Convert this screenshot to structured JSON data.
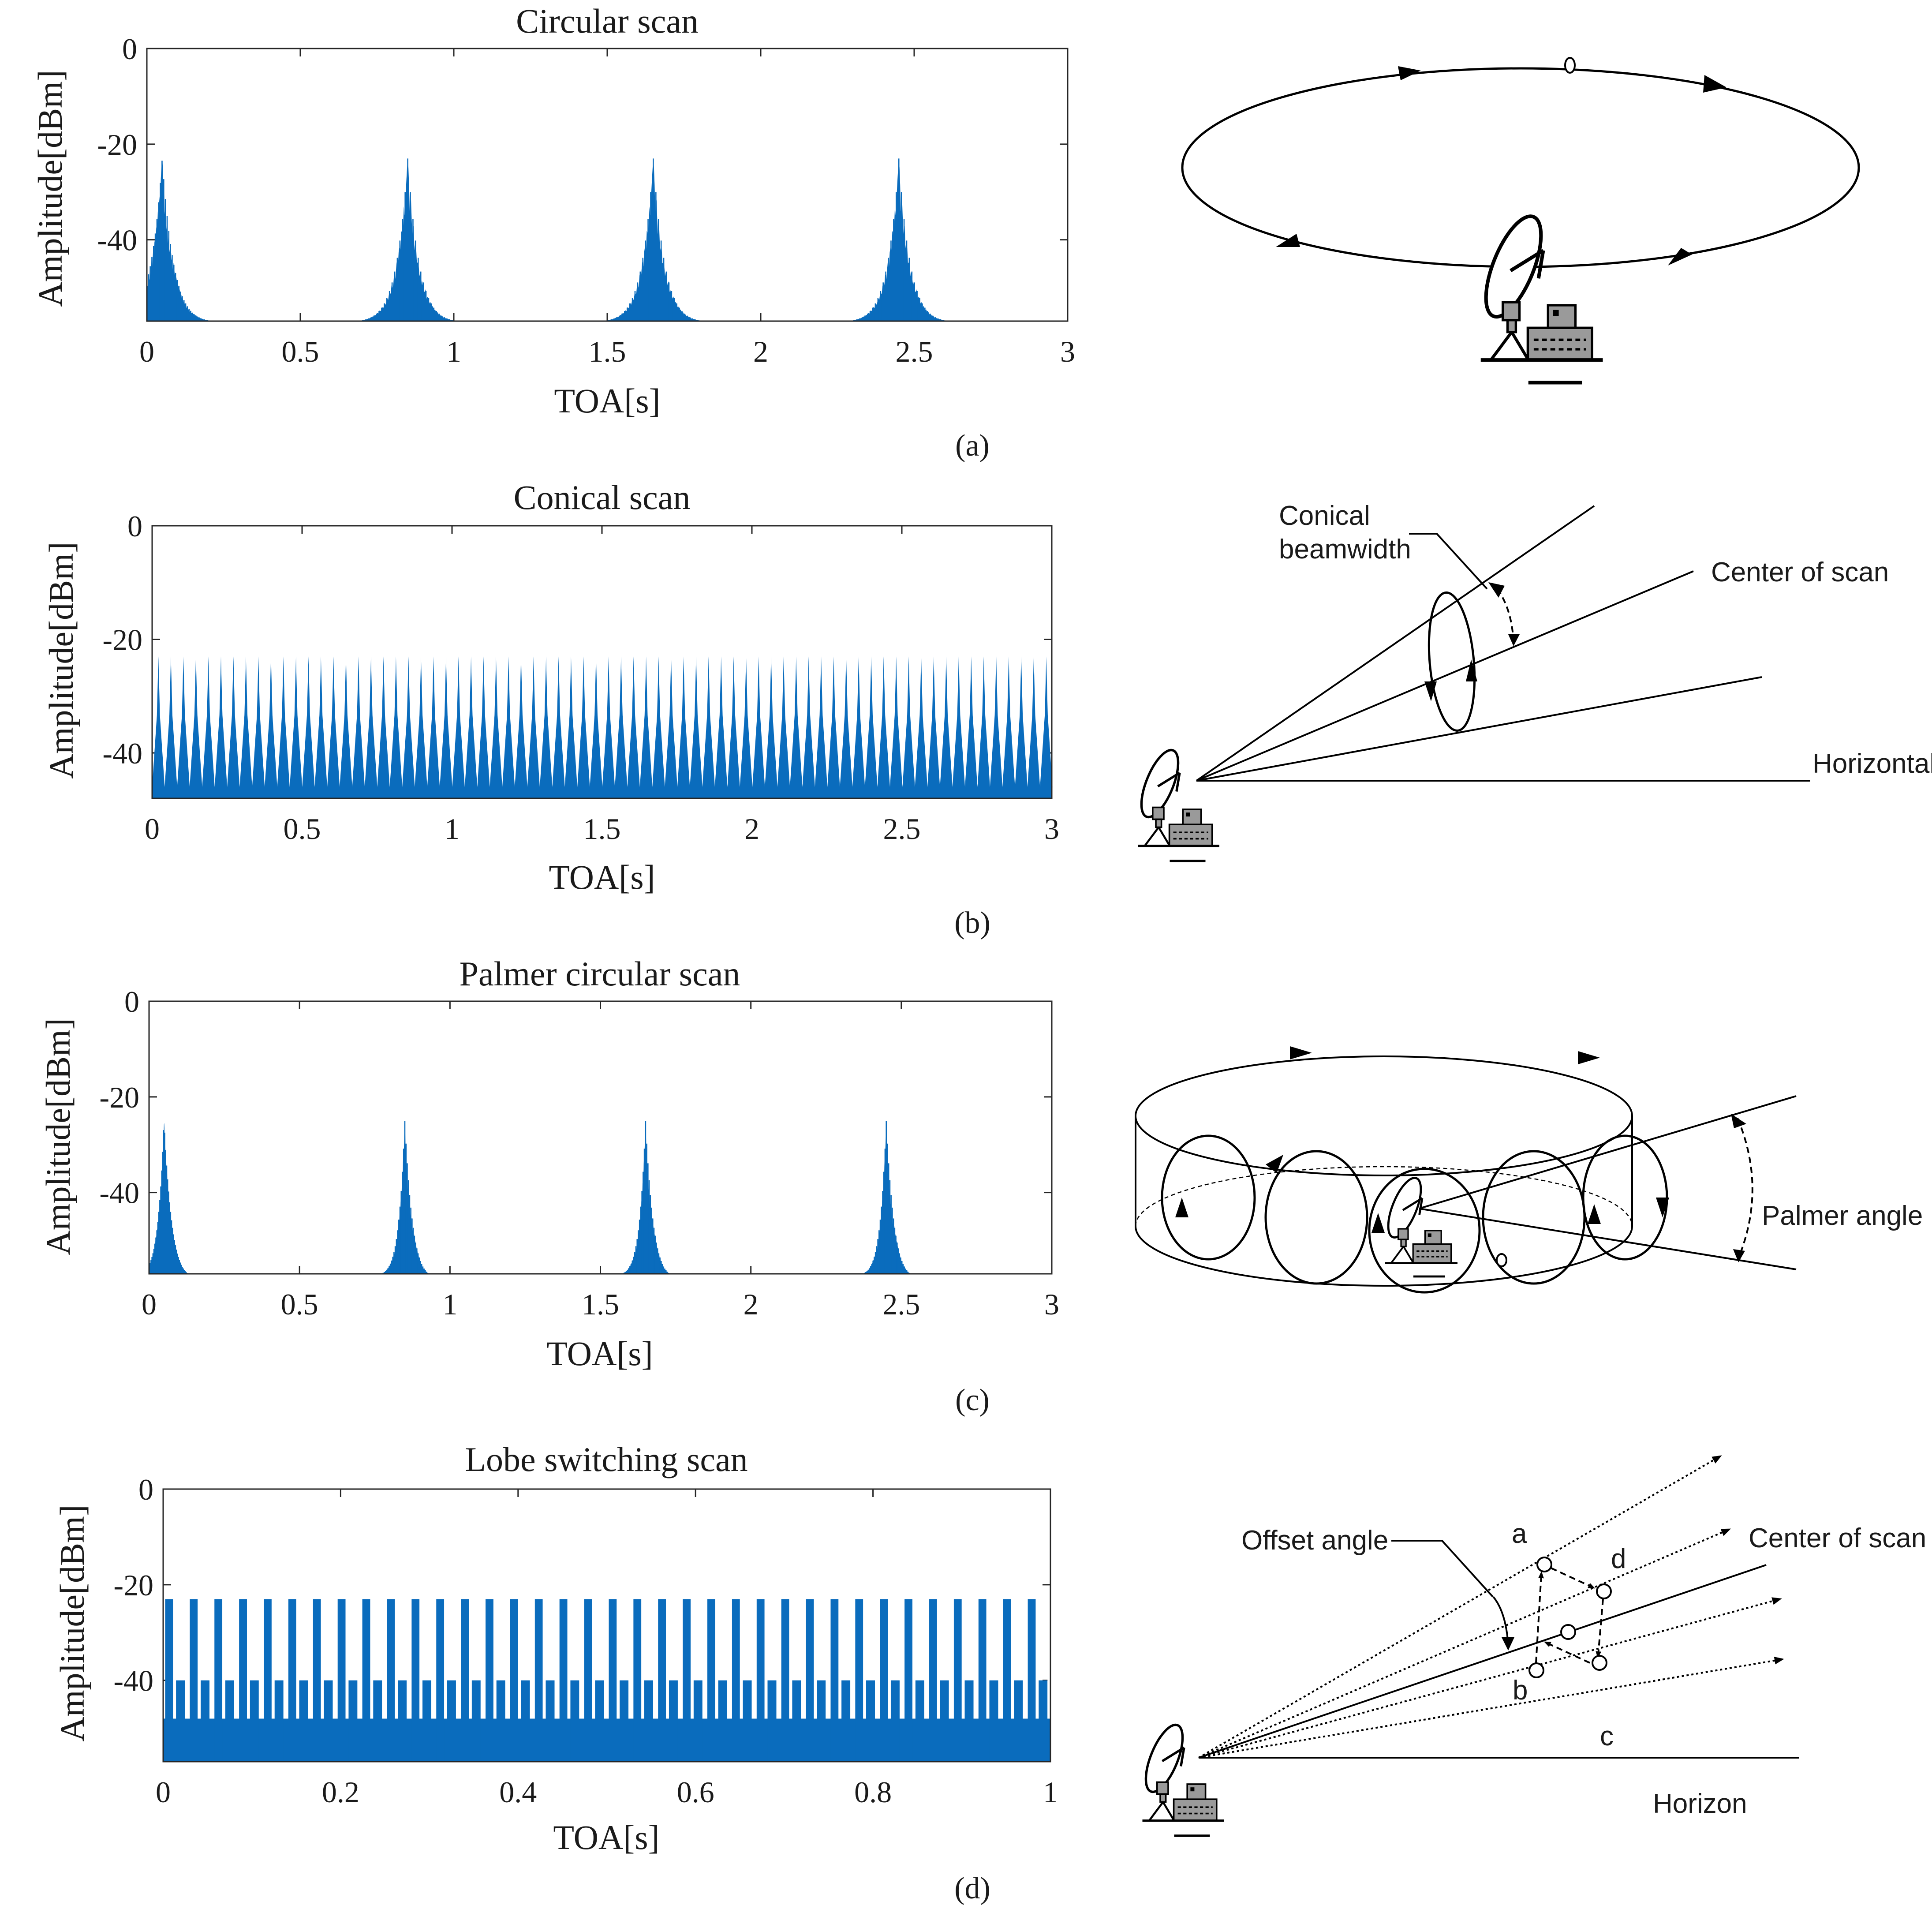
{
  "chart_data": [
    {
      "type": "line",
      "panel": "a",
      "title": "Circular scan",
      "xlabel": "TOA[s]",
      "ylabel": "Amplitude[dBm]",
      "xlim": [
        0,
        3
      ],
      "ylim": [
        -57,
        0
      ],
      "xticks": [
        0,
        0.5,
        1,
        1.5,
        2,
        2.5,
        3
      ],
      "xtick_labels": [
        "0",
        "0.5",
        "1",
        "1.5",
        "2",
        "2.5",
        "3"
      ],
      "yticks": [
        0,
        -20,
        -40
      ],
      "ytick_labels": [
        "0",
        "-20",
        "-40"
      ],
      "scan": "circular",
      "floor": -57,
      "peak_level": -23,
      "peak_times": [
        0.05,
        0.85,
        1.65,
        2.45
      ],
      "lobe_halfwidth": 0.17
    },
    {
      "type": "line",
      "panel": "b",
      "title": "Conical scan",
      "xlabel": "TOA[s]",
      "ylabel": "Amplitude[dBm]",
      "xlim": [
        0,
        3
      ],
      "ylim": [
        -48,
        0
      ],
      "xticks": [
        0,
        0.5,
        1,
        1.5,
        2,
        2.5,
        3
      ],
      "xtick_labels": [
        "0",
        "0.5",
        "1",
        "1.5",
        "2",
        "2.5",
        "3"
      ],
      "yticks": [
        0,
        -20,
        -40
      ],
      "ytick_labels": [
        "0",
        "-20",
        "-40"
      ],
      "scan": "conical",
      "floor": -48,
      "peak_level": -23,
      "min_level": -46,
      "period": 0.0417
    },
    {
      "type": "line",
      "panel": "c",
      "title": "Palmer circular scan",
      "xlabel": "TOA[s]",
      "ylabel": "Amplitude[dBm]",
      "xlim": [
        0,
        3
      ],
      "ylim": [
        -57,
        0
      ],
      "xticks": [
        0,
        0.5,
        1,
        1.5,
        2,
        2.5,
        3
      ],
      "xtick_labels": [
        "0",
        "0.5",
        "1",
        "1.5",
        "2",
        "2.5",
        "3"
      ],
      "yticks": [
        0,
        -20,
        -40
      ],
      "ytick_labels": [
        "0",
        "-20",
        "-40"
      ],
      "scan": "palmer",
      "floor": -57,
      "peak_level": -25,
      "peak_times": [
        0.05,
        0.85,
        1.65,
        2.45
      ],
      "lobe_halfwidth": 0.08
    },
    {
      "type": "line",
      "panel": "d",
      "title": "Lobe switching scan",
      "xlabel": "TOA[s]",
      "ylabel": "Amplitude[dBm]",
      "xlim": [
        0,
        1
      ],
      "ylim": [
        -57,
        0
      ],
      "xticks": [
        0,
        0.2,
        0.4,
        0.6,
        0.8,
        1
      ],
      "xtick_labels": [
        "0",
        "0.2",
        "0.4",
        "0.6",
        "0.8",
        "1"
      ],
      "yticks": [
        0,
        -20,
        -40
      ],
      "ytick_labels": [
        "0",
        "-20",
        "-40"
      ],
      "scan": "lobe",
      "floor": -57,
      "levels": [
        -23,
        -40,
        -23,
        -48
      ],
      "cycles": 36
    }
  ],
  "captions": [
    "(a)",
    "(b)",
    "(c)",
    "(d)"
  ],
  "diagrams": {
    "b": {
      "conical_beamwidth_line1": "Conical",
      "conical_beamwidth_line2": "beamwidth",
      "center_of_scan": "Center of scan",
      "horizontal": "Horizontal"
    },
    "c": {
      "palmer_angle": "Palmer angle"
    },
    "d": {
      "offset_angle": "Offset angle",
      "center_of_scan": "Center of scan",
      "horizon": "Horizon",
      "position_labels": [
        "a",
        "b",
        "c",
        "d"
      ]
    }
  }
}
